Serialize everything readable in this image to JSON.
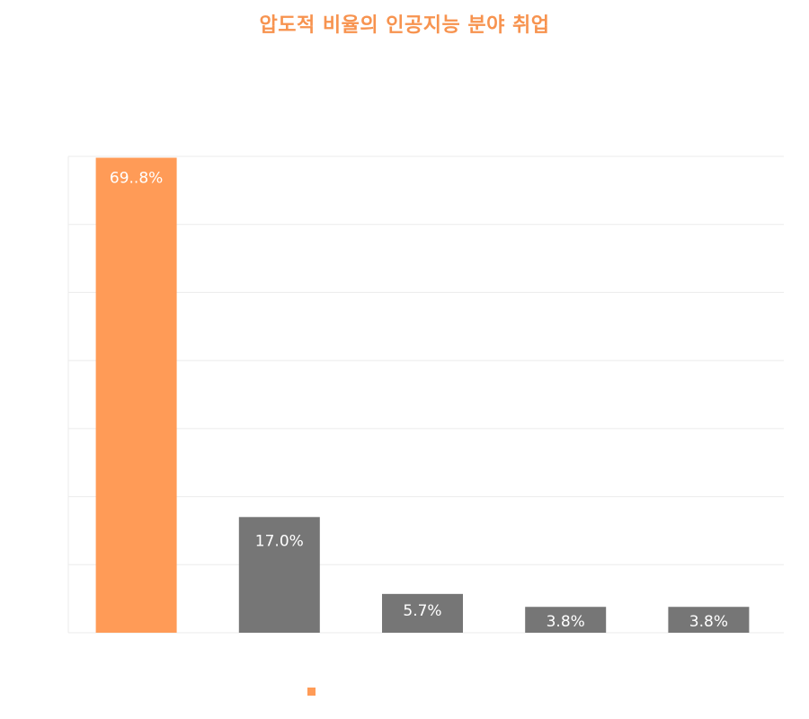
{
  "colors": {
    "accent": "#FF9B57",
    "secondary": "#767676",
    "title": "#F7934F",
    "grid": "#EBEBEB",
    "label": "#FFFFFF"
  },
  "chart_data": {
    "type": "bar",
    "title": "압도적 비율의 인공지능 분야 취업",
    "categories": [
      "",
      "",
      "",
      "",
      ""
    ],
    "values": [
      69.8,
      17.0,
      5.7,
      3.8,
      3.8
    ],
    "data_labels": [
      "69..8%",
      "17.0%",
      "5.7%",
      "3.8%",
      "3.8%"
    ],
    "bar_colors": [
      "#FF9B57",
      "#767676",
      "#767676",
      "#767676",
      "#767676"
    ],
    "ylim": [
      0,
      70
    ],
    "grid": true,
    "legend": {
      "placement": "bottom",
      "entries": [
        {
          "name": "",
          "color": "#FF9B57"
        }
      ]
    },
    "xlabel": "",
    "ylabel": ""
  }
}
